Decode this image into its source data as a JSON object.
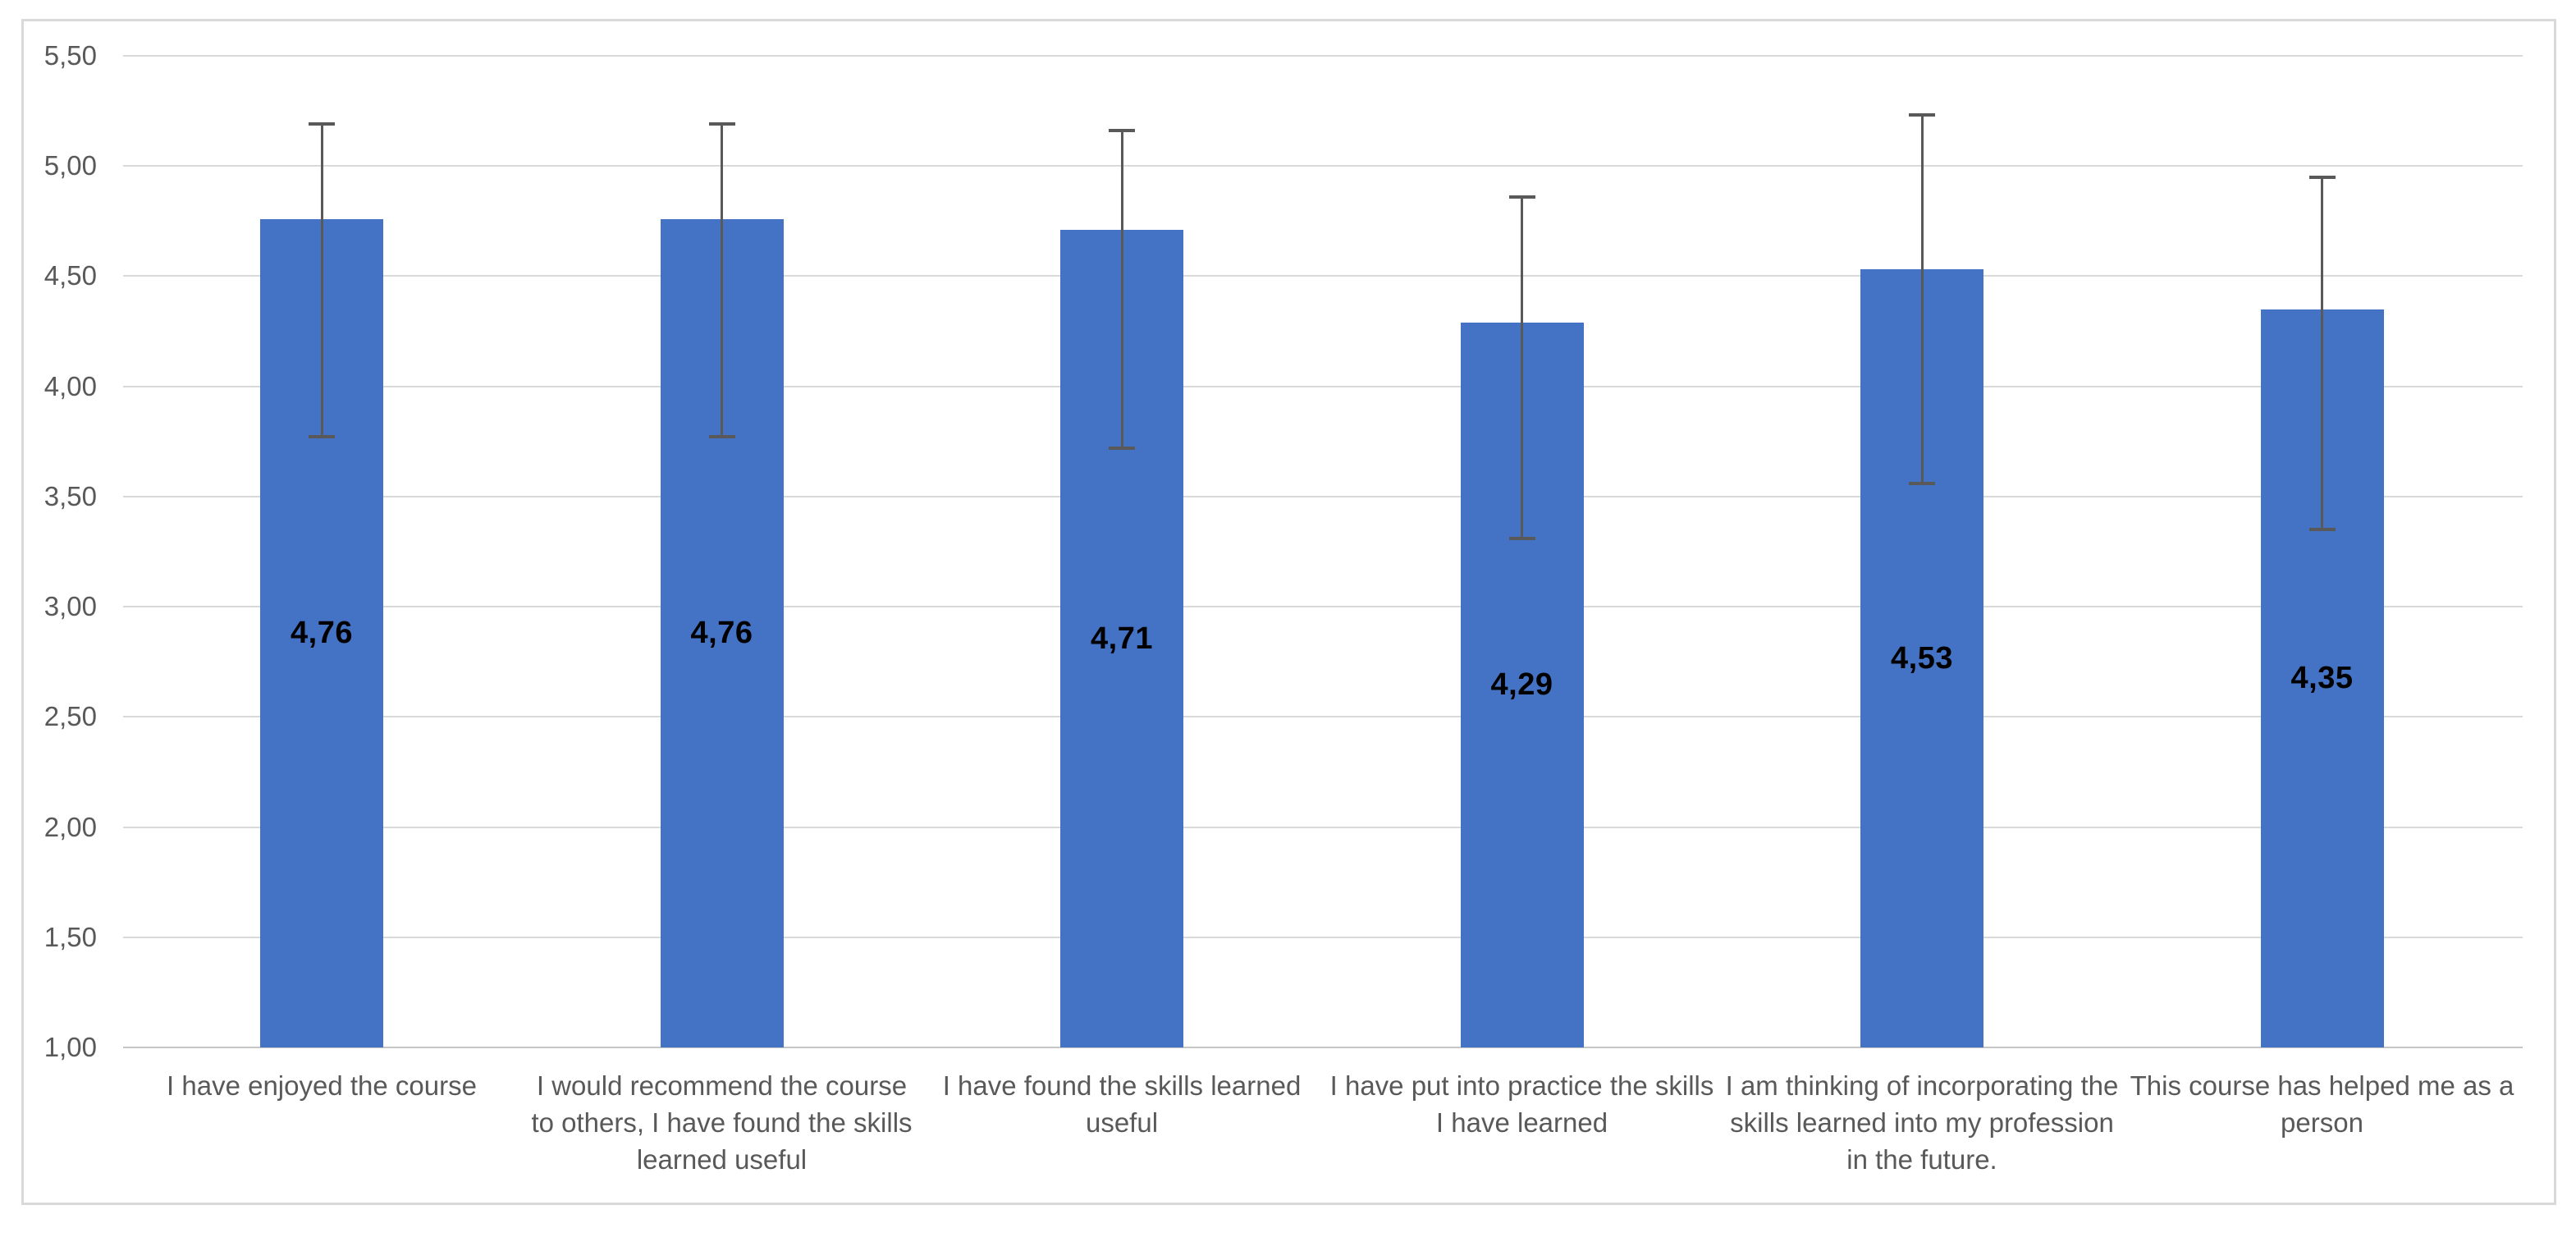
{
  "chart_data": {
    "type": "bar",
    "title": "",
    "xlabel": "",
    "ylabel": "",
    "legend": null,
    "grid": true,
    "decimal_separator": ",",
    "categories": [
      "I have enjoyed the course",
      "I would recommend the course to others, I have found the skills learned useful",
      "I have found the skills learned useful",
      "I have put into practice the skills I have learned",
      "I am thinking of incorporating the skills learned into my profession in the future.",
      "This course has helped me as a person"
    ],
    "values": [
      4.76,
      4.76,
      4.71,
      4.29,
      4.53,
      4.35
    ],
    "value_labels": [
      "4,76",
      "4,76",
      "4,71",
      "4,29",
      "4,53",
      "4,35"
    ],
    "error_low": [
      3.77,
      3.77,
      3.72,
      3.31,
      3.56,
      3.35
    ],
    "error_high": [
      5.19,
      5.19,
      5.16,
      4.86,
      5.23,
      4.95
    ],
    "y_axis": {
      "min": 1.0,
      "max": 5.5,
      "step": 0.5,
      "tick_labels_top_to_bottom": [
        "5,50",
        "5,00",
        "4,50",
        "4,00",
        "3,50",
        "3,00",
        "2,50",
        "2,00",
        "1,50",
        "1,00"
      ]
    },
    "colors": {
      "bar_fill": "#4472C4",
      "error_bar": "#595959",
      "gridline": "#D9D9D9",
      "baseline": "#C6C6C6",
      "axis_text": "#595959",
      "category_text": "#595959",
      "value_label_text": "#000000",
      "frame_border": "#D9D9D9",
      "background": "#FFFFFF"
    }
  }
}
